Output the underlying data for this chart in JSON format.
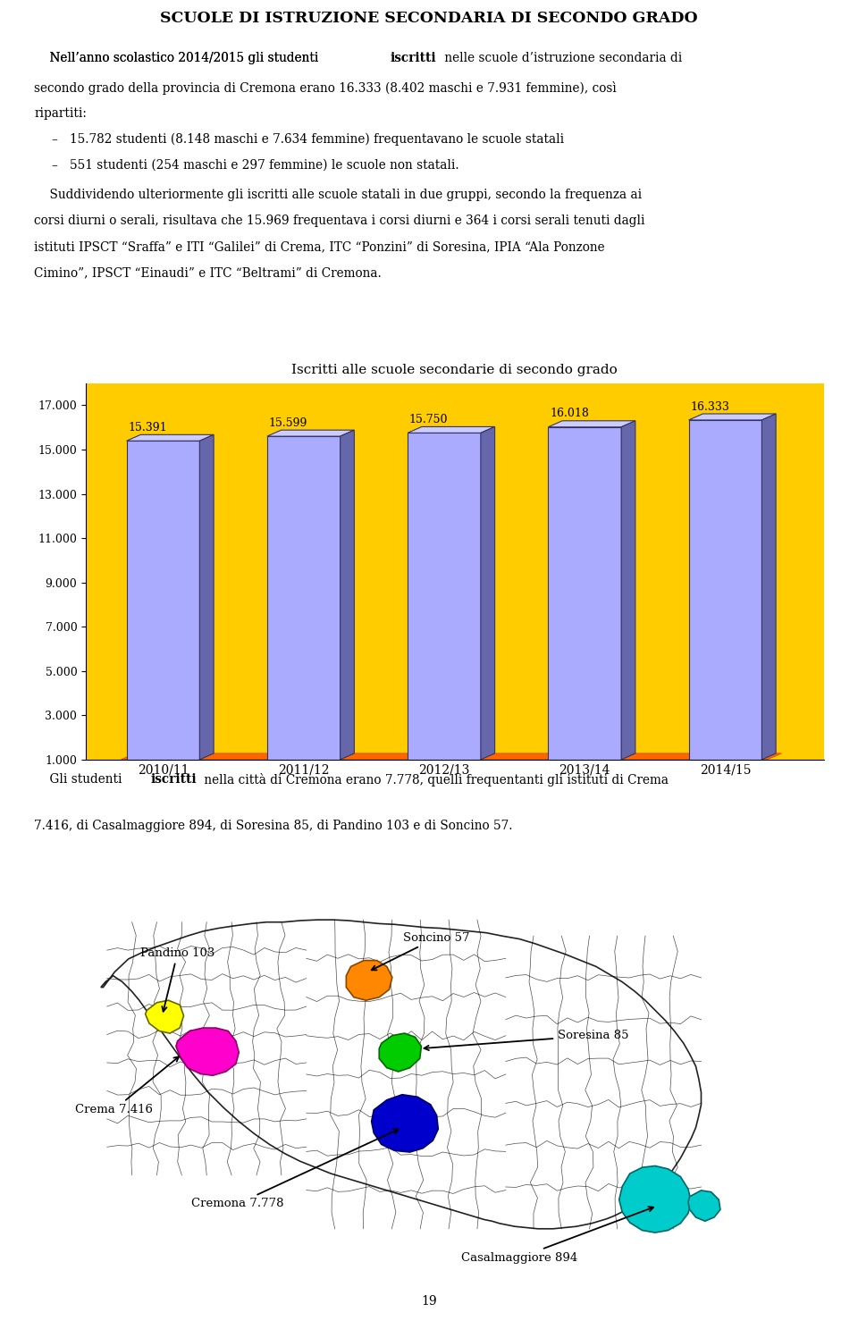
{
  "title": "SCUOLE DI ISTRUZIONE SECONDARIA DI SECONDO GRADO",
  "chart_title": "Iscritti alle scuole secondarie di secondo grado",
  "categories": [
    "2010/11",
    "2011/12",
    "2012/13",
    "2013/14",
    "2014/15"
  ],
  "values": [
    15391,
    15599,
    15750,
    16018,
    16333
  ],
  "bar_color": "#aaaaff",
  "bar_edge_color": "#333366",
  "bar_top_color": "#ccccff",
  "bar_side_color": "#6666aa",
  "chart_bg": "#ffcc00",
  "chart_floor_color": "#ff6600",
  "yticks": [
    1000,
    3000,
    5000,
    7000,
    9000,
    11000,
    13000,
    15000,
    17000
  ],
  "ymin": 1000,
  "ymax": 17500,
  "page_number": "19"
}
